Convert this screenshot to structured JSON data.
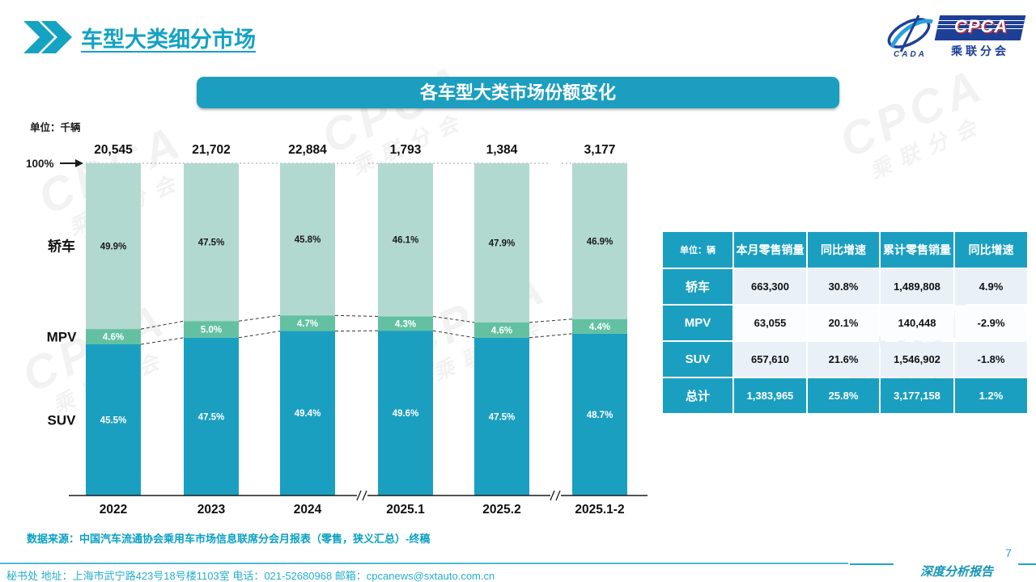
{
  "page": {
    "title": "车型大类细分市场",
    "page_number": "7",
    "report_label": "深度分析报告",
    "watermark": {
      "line1": "CPCA",
      "line2": "乘联分会"
    },
    "logo": {
      "cpca": "CPCA",
      "subtitle": "乘联分会",
      "cada": "CADA"
    }
  },
  "banner": {
    "title": "各车型大类市场份额变化"
  },
  "chart_data": {
    "type": "bar",
    "stacked": true,
    "unit_label": "单位：千辆",
    "axis_100_label": "100%",
    "categories": [
      "2022",
      "2023",
      "2024",
      "2025.1",
      "2025.2",
      "2025.1-2"
    ],
    "totals": [
      "20,545",
      "21,702",
      "22,884",
      "1,793",
      "1,384",
      "3,177"
    ],
    "series": [
      {
        "name": "轿车",
        "color": "#b2d9d0",
        "label_color": "#1a1a1a",
        "values": [
          49.9,
          47.5,
          45.8,
          46.1,
          47.9,
          46.9
        ]
      },
      {
        "name": "MPV",
        "color": "#63c1a2",
        "label_color": "#ffffff",
        "values": [
          4.6,
          5.0,
          4.7,
          4.3,
          4.6,
          4.4
        ]
      },
      {
        "name": "SUV",
        "color": "#1b9fc0",
        "label_color": "#ffffff",
        "values": [
          45.5,
          47.5,
          49.4,
          49.6,
          47.5,
          48.7
        ]
      }
    ],
    "ylim": [
      0,
      100
    ],
    "axis_breaks_after_category_index": [
      2,
      4
    ],
    "colors": {
      "axis": "#1a1a1a",
      "connector_dash": "#333333",
      "top_dotted": "#b5b5b5"
    }
  },
  "table": {
    "header": [
      "单位：辆",
      "本月零售销量",
      "同比增速",
      "累计零售销量",
      "同比增速"
    ],
    "rows": [
      {
        "label": "轿车",
        "cells": [
          "663,300",
          "30.8%",
          "1,489,808",
          "4.9%"
        ],
        "highlight": false
      },
      {
        "label": "MPV",
        "cells": [
          "63,055",
          "20.1%",
          "140,448",
          "-2.9%"
        ],
        "highlight": false
      },
      {
        "label": "SUV",
        "cells": [
          "657,610",
          "21.6%",
          "1,546,902",
          "-1.8%"
        ],
        "highlight": false
      },
      {
        "label": "总计",
        "cells": [
          "1,383,965",
          "25.8%",
          "3,177,158",
          "1.2%"
        ],
        "highlight": true
      }
    ]
  },
  "source_note": "数据来源：中国汽车流通协会乘用车市场信息联席分会月报表（零售，狭义汇总）-终稿",
  "footer": {
    "text": "秘书处  地址：上海市武宁路423号18号楼1103室  电话：021-52680968   邮箱：cpcanews@sxtauto.com.cn"
  }
}
